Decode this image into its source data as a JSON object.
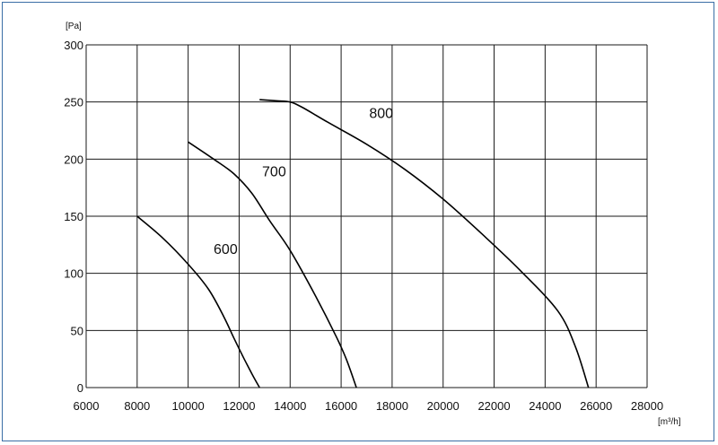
{
  "chart_data": {
    "type": "line",
    "title": "",
    "xlabel": "[m³/h]",
    "ylabel": "[Pa]",
    "xlim": [
      6000,
      28000
    ],
    "ylim": [
      0,
      300
    ],
    "grid": true,
    "x_ticks": [
      "6000",
      "8000",
      "10000",
      "12000",
      "14000",
      "16000",
      "18000",
      "20000",
      "22000",
      "24000",
      "26000",
      "28000"
    ],
    "y_ticks": [
      "0",
      "50",
      "100",
      "150",
      "200",
      "250",
      "300"
    ],
    "series": [
      {
        "name": "600",
        "x": [
          8000,
          9000,
          10000,
          10800,
          11400,
          11800,
          12200,
          12500,
          12800
        ],
        "y": [
          150,
          131,
          108,
          86,
          62,
          43,
          25,
          12,
          0
        ]
      },
      {
        "name": "700",
        "x": [
          10000,
          11000,
          11800,
          12500,
          13200,
          14000,
          15000,
          15800,
          16200,
          16600
        ],
        "y": [
          215,
          200,
          187,
          170,
          146,
          120,
          80,
          45,
          25,
          0
        ]
      },
      {
        "name": "800",
        "x": [
          12800,
          13500,
          14000,
          14500,
          15500,
          17000,
          18500,
          20000,
          21500,
          23000,
          24500,
          25200,
          25700
        ],
        "y": [
          252,
          251,
          250,
          245,
          232,
          213,
          191,
          165,
          135,
          103,
          67,
          35,
          0
        ]
      }
    ],
    "annotations": [
      {
        "text": "600",
        "x": 11000,
        "y": 117
      },
      {
        "text": "700",
        "x": 12900,
        "y": 185
      },
      {
        "text": "800",
        "x": 17100,
        "y": 236
      }
    ]
  }
}
